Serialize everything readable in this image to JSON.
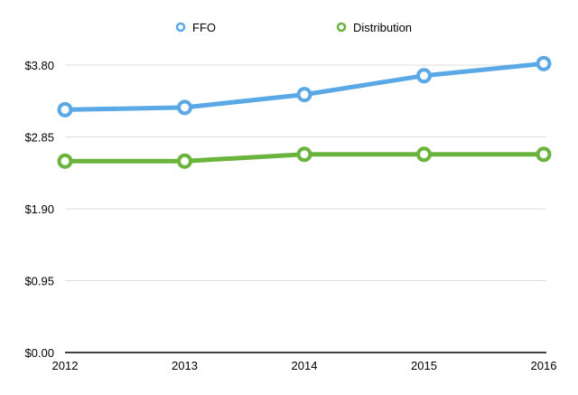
{
  "colors": {
    "ffo": "#5aa9e6",
    "distribution": "#6ab43e",
    "grid": "#dcdcdc",
    "axis": "#000000"
  },
  "chart_data": {
    "type": "line",
    "x": [
      "2012",
      "2013",
      "2014",
      "2015",
      "2016"
    ],
    "series": [
      {
        "name": "FFO",
        "values": [
          3.21,
          3.24,
          3.41,
          3.66,
          3.82
        ]
      },
      {
        "name": "Distribution",
        "values": [
          2.53,
          2.53,
          2.62,
          2.62,
          2.62
        ]
      }
    ],
    "yticks": [
      "$0.00",
      "$0.95",
      "$1.90",
      "$2.85",
      "$3.80"
    ],
    "ylim": [
      0,
      3.8
    ],
    "grid": true,
    "legend": "top-center",
    "title": "",
    "xlabel": "",
    "ylabel": ""
  }
}
